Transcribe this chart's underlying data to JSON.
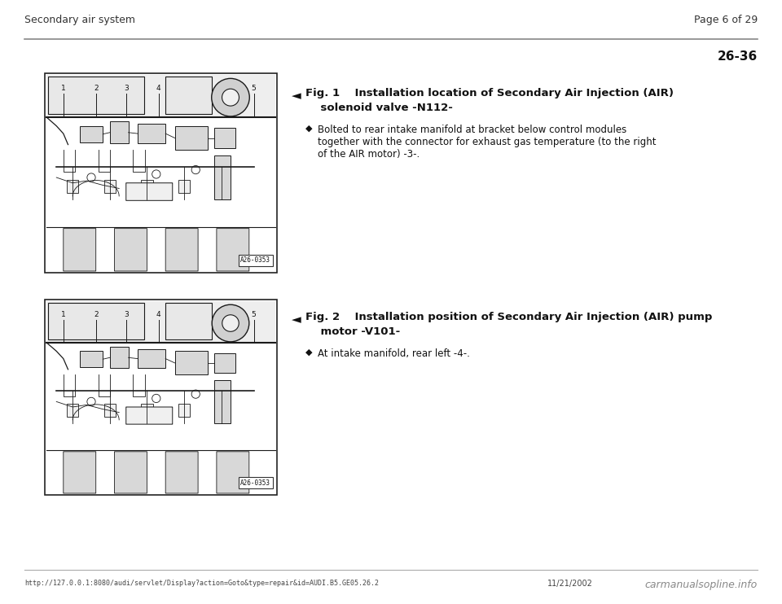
{
  "bg_color": "#ffffff",
  "header_left": "Secondary air system",
  "header_right": "Page 6 of 29",
  "page_number": "26-36",
  "footer_url": "http://127.0.0.1:8080/audi/servlet/Display?action=Goto&type=repair&id=AUDI.B5.GE05.26.2",
  "footer_date": "11/21/2002",
  "footer_watermark": "carmanualsopline.info",
  "fig1_line1": "Fig. 1",
  "fig1_label1": "    Installation location of Secondary Air Injection (AIR)",
  "fig1_label2": "    solenoid valve -N112-",
  "fig1_b1": "Bolted to rear intake manifold at bracket below control modules",
  "fig1_b2": "together with the connector for exhaust gas temperature (to the right",
  "fig1_b3": "of the AIR motor) -3-.",
  "fig2_line1": "Fig. 2",
  "fig2_label1": "    Installation position of Secondary Air Injection (AIR) pump",
  "fig2_label2": "    motor -V101-",
  "fig2_b1": "At intake manifold, rear left -4-.",
  "image_label": "A26-0353",
  "arrow_char": "◄",
  "bullet_char": "◆"
}
